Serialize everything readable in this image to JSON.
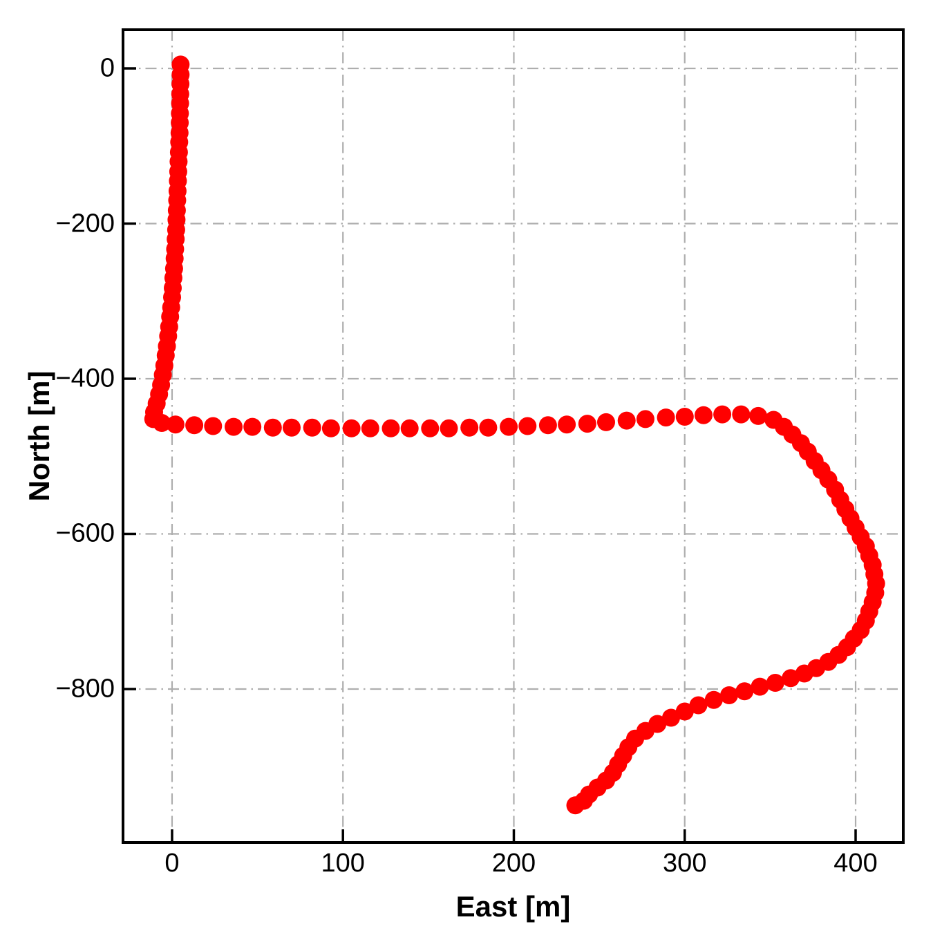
{
  "chart_data": {
    "type": "scatter",
    "title": "",
    "xlabel": "East [m]",
    "ylabel": "North [m]",
    "xlim": [
      -28.7,
      427.9
    ],
    "ylim": [
      -997.8,
      49.9
    ],
    "xticks": [
      0,
      100,
      200,
      300,
      400
    ],
    "xtick_labels": [
      "0",
      "100",
      "200",
      "300",
      "400"
    ],
    "yticks": [
      0,
      -200,
      -400,
      -600,
      -800
    ],
    "ytick_labels": [
      "0",
      "−200",
      "−400",
      "−600",
      "−800"
    ],
    "grid": true,
    "grid_linestyle": "dash-dot",
    "legend": "none",
    "colors": {
      "marker": "#ff0000",
      "grid": "#aeaeae",
      "spine": "#000000",
      "background": "#ffffff",
      "text": "#000000"
    },
    "marker_radius_px": 13,
    "series": [
      {
        "name": "vehicle-trajectory",
        "points": [
          [
            5.0,
            5
          ],
          [
            5.0,
            -8
          ],
          [
            4.9,
            -20
          ],
          [
            4.8,
            -33
          ],
          [
            4.7,
            -45
          ],
          [
            4.6,
            -58
          ],
          [
            4.5,
            -70
          ],
          [
            4.4,
            -83
          ],
          [
            4.2,
            -95
          ],
          [
            4.0,
            -108
          ],
          [
            3.8,
            -120
          ],
          [
            3.6,
            -133
          ],
          [
            3.4,
            -145
          ],
          [
            3.2,
            -158
          ],
          [
            3.0,
            -170
          ],
          [
            2.8,
            -183
          ],
          [
            2.6,
            -195
          ],
          [
            2.4,
            -208
          ],
          [
            2.1,
            -220
          ],
          [
            1.8,
            -233
          ],
          [
            1.5,
            -245
          ],
          [
            1.2,
            -258
          ],
          [
            0.8,
            -270
          ],
          [
            0.4,
            -283
          ],
          [
            0.0,
            -295
          ],
          [
            -0.5,
            -308
          ],
          [
            -1.1,
            -320
          ],
          [
            -1.7,
            -333
          ],
          [
            -2.3,
            -345
          ],
          [
            -3.0,
            -358
          ],
          [
            -3.7,
            -370
          ],
          [
            -4.5,
            -383
          ],
          [
            -5.4,
            -395
          ],
          [
            -6.4,
            -408
          ],
          [
            -7.6,
            -420
          ],
          [
            -9.0,
            -432
          ],
          [
            -10.5,
            -443
          ],
          [
            -11.0,
            -452
          ],
          [
            -6.0,
            -457
          ],
          [
            2,
            -459
          ],
          [
            13,
            -460
          ],
          [
            24,
            -461
          ],
          [
            36,
            -462
          ],
          [
            47,
            -462
          ],
          [
            59,
            -463
          ],
          [
            70,
            -463
          ],
          [
            82,
            -463
          ],
          [
            93,
            -464
          ],
          [
            105,
            -464
          ],
          [
            116,
            -464
          ],
          [
            128,
            -464
          ],
          [
            139,
            -464
          ],
          [
            151,
            -464
          ],
          [
            162,
            -464
          ],
          [
            174,
            -463
          ],
          [
            185,
            -463
          ],
          [
            197,
            -462
          ],
          [
            208,
            -461
          ],
          [
            220,
            -460
          ],
          [
            231,
            -459
          ],
          [
            243,
            -458
          ],
          [
            254,
            -456
          ],
          [
            266,
            -454
          ],
          [
            277,
            -452
          ],
          [
            289,
            -450
          ],
          [
            300,
            -449
          ],
          [
            311,
            -447
          ],
          [
            322,
            -446
          ],
          [
            333,
            -446
          ],
          [
            343,
            -448
          ],
          [
            352,
            -453
          ],
          [
            358,
            -462
          ],
          [
            363,
            -472
          ],
          [
            368,
            -483
          ],
          [
            372,
            -494
          ],
          [
            376,
            -506
          ],
          [
            380,
            -518
          ],
          [
            384,
            -530
          ],
          [
            388,
            -543
          ],
          [
            391,
            -556
          ],
          [
            394,
            -568
          ],
          [
            397,
            -580
          ],
          [
            400,
            -592
          ],
          [
            403,
            -604
          ],
          [
            406,
            -616
          ],
          [
            408,
            -628
          ],
          [
            410,
            -640
          ],
          [
            411,
            -652
          ],
          [
            412,
            -664
          ],
          [
            411.5,
            -676
          ],
          [
            410,
            -688
          ],
          [
            408,
            -700
          ],
          [
            406,
            -712
          ],
          [
            403,
            -724
          ],
          [
            399,
            -735
          ],
          [
            395,
            -746
          ],
          [
            390,
            -756
          ],
          [
            384,
            -765
          ],
          [
            377,
            -773
          ],
          [
            370,
            -780
          ],
          [
            362,
            -786
          ],
          [
            353,
            -792
          ],
          [
            344,
            -797
          ],
          [
            335,
            -803
          ],
          [
            326,
            -808
          ],
          [
            317,
            -814
          ],
          [
            308,
            -821
          ],
          [
            300,
            -829
          ],
          [
            292,
            -837
          ],
          [
            284,
            -845
          ],
          [
            277,
            -854
          ],
          [
            271,
            -864
          ],
          [
            267,
            -875
          ],
          [
            264,
            -886
          ],
          [
            261,
            -897
          ],
          [
            258,
            -908
          ],
          [
            254,
            -918
          ],
          [
            249,
            -927
          ],
          [
            244,
            -936
          ],
          [
            241,
            -944
          ],
          [
            236,
            -950
          ]
        ]
      }
    ]
  }
}
